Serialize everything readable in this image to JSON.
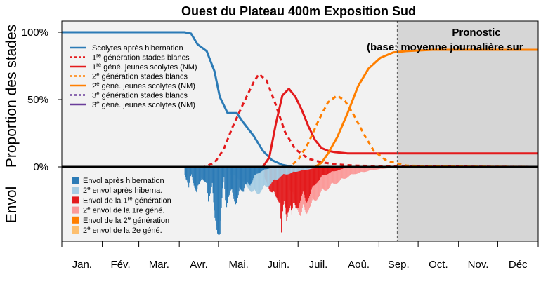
{
  "chart_data": {
    "type": "line",
    "title": "Ouest du Plateau 400m Exposition Sud",
    "ylabel_top": "Proportion des stades",
    "ylabel_bottom": "Envol",
    "y_ticks": [
      "100%",
      "50%",
      "0%"
    ],
    "months": [
      "Jan.",
      "Fév.",
      "Mar.",
      "Avr.",
      "Mai.",
      "Juin.",
      "Juil.",
      "Aoû.",
      "Sep.",
      "Oct.",
      "Nov.",
      "Déc"
    ],
    "x_unit": "day of year",
    "xlim": [
      1,
      366
    ],
    "ylim": [
      0,
      1
    ],
    "forecast_start_day": 258,
    "forecast_title": "Pronostic",
    "forecast_subtitle": "(base: moyenne journalière sur",
    "colors": {
      "panel_bg": "#f2f2f2",
      "forecast_bg": "#d6d6d6",
      "blue": "#2c7bb6",
      "light_blue": "#a6cde3",
      "red": "#e31a1c",
      "pink": "#fb9a99",
      "orange": "#ff7f00",
      "light_orange": "#fdbf6f",
      "purple": "#6a3d9a"
    },
    "legend_top": [
      {
        "pre": "Scolytes après hibernation",
        "sup": "",
        "post": "",
        "color": "#2c7bb6",
        "dash": false
      },
      {
        "pre": "1",
        "sup": "re",
        "post": " génération stades blancs",
        "color": "#e31a1c",
        "dash": true
      },
      {
        "pre": "1",
        "sup": "re",
        "post": " géné. jeunes scolytes (NM)",
        "color": "#e31a1c",
        "dash": false
      },
      {
        "pre": "2",
        "sup": "e",
        "post": " génération stades blancs",
        "color": "#ff7f00",
        "dash": true
      },
      {
        "pre": "2",
        "sup": "e",
        "post": " géné. jeunes scolytes (NM)",
        "color": "#ff7f00",
        "dash": false
      },
      {
        "pre": "3",
        "sup": "e",
        "post": " génération stades blancs",
        "color": "#6a3d9a",
        "dash": true
      },
      {
        "pre": "3",
        "sup": "e",
        "post": " géné. jeunes scolytes (NM)",
        "color": "#6a3d9a",
        "dash": false
      }
    ],
    "legend_bottom": [
      {
        "pre": "Envol après hibernation",
        "sup": "",
        "post": "",
        "color": "#2c7bb6"
      },
      {
        "pre": "2",
        "sup": "e",
        "post": " envol après hiberna.",
        "color": "#a6cde3"
      },
      {
        "pre": "Envol de la 1",
        "sup": "re",
        "post": " génération",
        "color": "#e31a1c"
      },
      {
        "pre": "2",
        "sup": "e",
        "post": " envol de la 1re géné.",
        "color": "#fb9a99"
      },
      {
        "pre": "Envol de la 2",
        "sup": "e",
        "post": " génération",
        "color": "#ff7f00"
      },
      {
        "pre": "2",
        "sup": "e",
        "post": " envol de la 2e géné.",
        "color": "#fdbf6f"
      }
    ],
    "series": [
      {
        "name": "Scolytes après hibernation",
        "color": "#2c7bb6",
        "dash": false,
        "x": [
          1,
          95,
          100,
          105,
          112,
          118,
          122,
          128,
          135,
          140,
          148,
          155,
          162,
          170,
          178,
          366
        ],
        "y": [
          1.0,
          1.0,
          0.99,
          0.91,
          0.86,
          0.71,
          0.52,
          0.4,
          0.4,
          0.33,
          0.23,
          0.12,
          0.05,
          0.015,
          0.0,
          0.0
        ]
      },
      {
        "name": "1re génération stades blancs",
        "color": "#e31a1c",
        "dash": true,
        "x": [
          1,
          110,
          118,
          125,
          132,
          140,
          148,
          152,
          158,
          165,
          172,
          180,
          190,
          200,
          210,
          225,
          245,
          366
        ],
        "y": [
          0.0,
          0.0,
          0.03,
          0.13,
          0.3,
          0.47,
          0.63,
          0.69,
          0.64,
          0.46,
          0.26,
          0.13,
          0.06,
          0.035,
          0.02,
          0.01,
          0.005,
          0.0
        ]
      },
      {
        "name": "1re géné. jeunes scolytes (NM)",
        "color": "#e31a1c",
        "dash": false,
        "x": [
          1,
          155,
          160,
          165,
          170,
          175,
          180,
          185,
          190,
          195,
          200,
          205,
          210,
          220,
          230,
          258,
          366
        ],
        "y": [
          0.0,
          0.0,
          0.07,
          0.32,
          0.53,
          0.58,
          0.52,
          0.42,
          0.3,
          0.2,
          0.14,
          0.12,
          0.11,
          0.1,
          0.1,
          0.1,
          0.1
        ]
      },
      {
        "name": "2e génération stades blancs",
        "color": "#ff7f00",
        "dash": true,
        "x": [
          1,
          175,
          182,
          190,
          198,
          205,
          212,
          218,
          225,
          232,
          240,
          250,
          265,
          290,
          366
        ],
        "y": [
          0.0,
          0.0,
          0.05,
          0.18,
          0.35,
          0.48,
          0.53,
          0.49,
          0.38,
          0.25,
          0.12,
          0.045,
          0.01,
          0.003,
          0.0
        ]
      },
      {
        "name": "2e géné. jeunes scolytes (NM)",
        "color": "#ff7f00",
        "dash": false,
        "x": [
          1,
          195,
          200,
          205,
          212,
          220,
          228,
          236,
          245,
          255,
          265,
          285,
          320,
          366
        ],
        "y": [
          0.0,
          0.0,
          0.03,
          0.1,
          0.22,
          0.4,
          0.6,
          0.73,
          0.81,
          0.85,
          0.86,
          0.87,
          0.87,
          0.87
        ]
      },
      {
        "name": "3e génération stades blancs",
        "color": "#6a3d9a",
        "dash": true,
        "x": [
          1,
          366
        ],
        "y": [
          0.0,
          0.0
        ]
      },
      {
        "name": "3e géné. jeunes scolytes (NM)",
        "color": "#6a3d9a",
        "dash": false,
        "x": [
          1,
          366
        ],
        "y": [
          0.0,
          0.0
        ]
      }
    ],
    "flight_bars": [
      {
        "name": "Envol après hibernation",
        "color": "#2c7bb6",
        "layer": 0,
        "points": [
          [
            95,
            0.12
          ],
          [
            96,
            0.2
          ],
          [
            98,
            0.3
          ],
          [
            99,
            0.15
          ],
          [
            100,
            0.1
          ],
          [
            103,
            0.35
          ],
          [
            104,
            0.42
          ],
          [
            105,
            0.28
          ],
          [
            108,
            0.15
          ],
          [
            112,
            0.28
          ],
          [
            113,
            0.5
          ],
          [
            114,
            0.4
          ],
          [
            116,
            0.22
          ],
          [
            118,
            0.8
          ],
          [
            119,
            0.97
          ],
          [
            120,
            0.99
          ],
          [
            121,
            0.95
          ],
          [
            122,
            0.9
          ],
          [
            123,
            0.55
          ],
          [
            124,
            0.3
          ],
          [
            125,
            0.15
          ],
          [
            126,
            0.55
          ],
          [
            127,
            0.62
          ],
          [
            128,
            0.45
          ],
          [
            130,
            0.32
          ],
          [
            131,
            0.3
          ],
          [
            133,
            0.55
          ],
          [
            134,
            0.6
          ],
          [
            135,
            0.5
          ],
          [
            137,
            0.28
          ],
          [
            139,
            0.35
          ],
          [
            140,
            0.38
          ],
          [
            141,
            0.3
          ],
          [
            143,
            0.22
          ],
          [
            145,
            0.25
          ],
          [
            147,
            0.2
          ],
          [
            148,
            0.15
          ],
          [
            150,
            0.1
          ],
          [
            152,
            0.08
          ],
          [
            154,
            0.06
          ],
          [
            156,
            0.04
          ],
          [
            158,
            0.03
          ],
          [
            160,
            0.02
          ],
          [
            162,
            0.015
          ]
        ]
      },
      {
        "name": "2e envol après hiberna.",
        "color": "#a6cde3",
        "layer": 1,
        "points": [
          [
            130,
            0.1
          ],
          [
            135,
            0.15
          ],
          [
            140,
            0.22
          ],
          [
            142,
            0.28
          ],
          [
            144,
            0.3
          ],
          [
            146,
            0.35
          ],
          [
            148,
            0.38
          ],
          [
            150,
            0.38
          ],
          [
            152,
            0.36
          ],
          [
            154,
            0.33
          ],
          [
            156,
            0.3
          ],
          [
            158,
            0.28
          ],
          [
            160,
            0.25
          ],
          [
            162,
            0.22
          ],
          [
            164,
            0.2
          ],
          [
            166,
            0.17
          ],
          [
            168,
            0.14
          ],
          [
            170,
            0.12
          ],
          [
            174,
            0.1
          ],
          [
            178,
            0.08
          ],
          [
            182,
            0.06
          ],
          [
            188,
            0.04
          ],
          [
            195,
            0.02
          ]
        ]
      },
      {
        "name": "Envol de la 1re génération",
        "color": "#e31a1c",
        "layer": 2,
        "points": [
          [
            155,
            0.15
          ],
          [
            158,
            0.22
          ],
          [
            160,
            0.32
          ],
          [
            162,
            0.38
          ],
          [
            164,
            0.42
          ],
          [
            166,
            0.45
          ],
          [
            168,
            0.5
          ],
          [
            169,
            0.95
          ],
          [
            170,
            0.7
          ],
          [
            171,
            0.55
          ],
          [
            172,
            0.6
          ],
          [
            173,
            0.75
          ],
          [
            174,
            0.62
          ],
          [
            175,
            0.58
          ],
          [
            176,
            0.55
          ],
          [
            177,
            0.72
          ],
          [
            178,
            0.6
          ],
          [
            179,
            0.55
          ],
          [
            180,
            0.58
          ],
          [
            182,
            0.55
          ],
          [
            184,
            0.45
          ],
          [
            186,
            0.4
          ],
          [
            188,
            0.5
          ],
          [
            190,
            0.42
          ],
          [
            192,
            0.35
          ],
          [
            194,
            0.28
          ],
          [
            196,
            0.22
          ],
          [
            198,
            0.18
          ],
          [
            200,
            0.14
          ],
          [
            204,
            0.1
          ],
          [
            208,
            0.07
          ],
          [
            212,
            0.05
          ],
          [
            216,
            0.03
          ]
        ]
      },
      {
        "name": "2e envol de la 1re géné.",
        "color": "#fb9a99",
        "layer": 3,
        "points": [
          [
            175,
            0.3
          ],
          [
            180,
            0.5
          ],
          [
            184,
            0.72
          ],
          [
            186,
            0.6
          ],
          [
            188,
            0.65
          ],
          [
            190,
            0.58
          ],
          [
            192,
            0.55
          ],
          [
            194,
            0.5
          ],
          [
            196,
            0.45
          ],
          [
            198,
            0.4
          ],
          [
            200,
            0.36
          ],
          [
            202,
            0.34
          ],
          [
            205,
            0.3
          ],
          [
            208,
            0.26
          ],
          [
            212,
            0.22
          ],
          [
            216,
            0.18
          ],
          [
            220,
            0.14
          ],
          [
            225,
            0.1
          ],
          [
            230,
            0.08
          ],
          [
            235,
            0.06
          ],
          [
            240,
            0.04
          ],
          [
            245,
            0.03
          ],
          [
            250,
            0.02
          ]
        ]
      },
      {
        "name": "Envol de la 2e génération",
        "color": "#ff7f00",
        "layer": 4,
        "points": []
      },
      {
        "name": "2e envol de la 2e géné.",
        "color": "#fdbf6f",
        "layer": 5,
        "points": []
      }
    ]
  }
}
